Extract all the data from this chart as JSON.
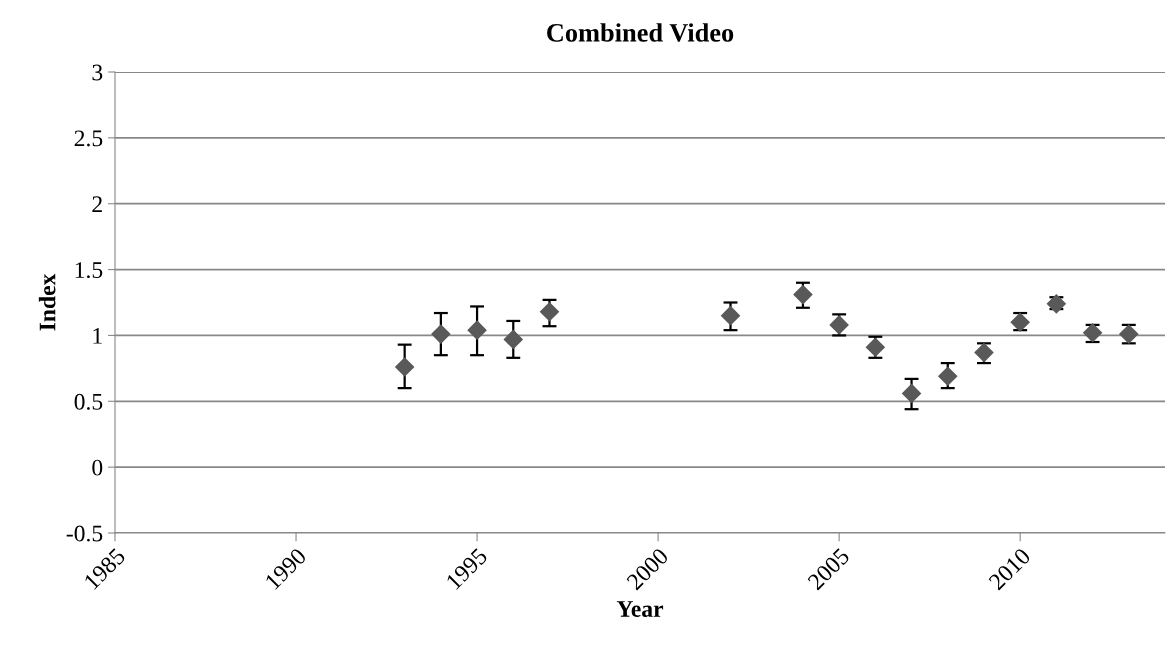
{
  "chart_data": {
    "type": "scatter",
    "title": "Combined Video",
    "xlabel": "Year",
    "ylabel": "Index",
    "x": [
      1993,
      1994,
      1995,
      1996,
      1997,
      2002,
      2004,
      2005,
      2006,
      2007,
      2008,
      2009,
      2010,
      2011,
      2012,
      2013
    ],
    "values": [
      0.76,
      1.01,
      1.04,
      0.97,
      1.18,
      1.15,
      1.31,
      1.08,
      0.91,
      0.56,
      0.69,
      0.87,
      1.1,
      1.24,
      1.02,
      1.01
    ],
    "errors": [
      [
        0.6,
        0.93
      ],
      [
        0.85,
        1.17
      ],
      [
        0.85,
        1.22
      ],
      [
        0.83,
        1.11
      ],
      [
        1.07,
        1.27
      ],
      [
        1.04,
        1.25
      ],
      [
        1.21,
        1.4
      ],
      [
        1.0,
        1.16
      ],
      [
        0.83,
        0.99
      ],
      [
        0.44,
        0.67
      ],
      [
        0.6,
        0.79
      ],
      [
        0.79,
        0.94
      ],
      [
        1.04,
        1.17
      ],
      [
        1.2,
        1.29
      ],
      [
        0.95,
        1.08
      ],
      [
        0.94,
        1.08
      ]
    ],
    "color": "#595959",
    "marker": "diamond",
    "grid": "y",
    "xlim": [
      1985,
      2014
    ],
    "xticks": [
      1985,
      1990,
      1995,
      2000,
      2005,
      2010
    ],
    "ylim": [
      -0.5,
      3
    ],
    "yticks": [
      -0.5,
      0,
      0.5,
      1,
      1.5,
      2,
      2.5,
      3
    ]
  }
}
